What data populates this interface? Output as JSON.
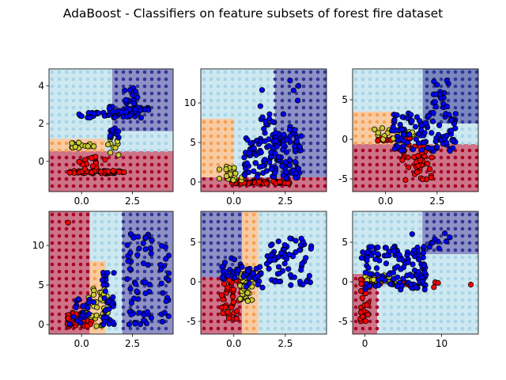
{
  "figure": {
    "title": "AdaBoost - Classifiers on feature subsets of forest fire dataset"
  },
  "colors": {
    "region": [
      "#a50026",
      "#f4a055",
      "#a6d6e6",
      "#313695"
    ],
    "point": [
      "#ff0000",
      "#cccc33",
      "#0000ff"
    ]
  },
  "chart_data": [
    {
      "type": "scatter",
      "xlim": [
        -1.6,
        4.5
      ],
      "ylim": [
        -1.6,
        4.9
      ],
      "xticks": [
        "0.0",
        "2.5"
      ],
      "xtick_values": [
        0,
        2.5
      ],
      "yticks": [
        "0",
        "2",
        "4"
      ],
      "ytick_values": [
        0,
        2,
        4
      ],
      "regions": [
        {
          "x0": -1.6,
          "x1": 4.5,
          "y0": -1.6,
          "y1": 0.55,
          "cls": 0
        },
        {
          "x0": -1.6,
          "x1": 1.2,
          "y0": 0.55,
          "y1": 1.2,
          "cls": 1
        },
        {
          "x0": 1.2,
          "x1": 4.5,
          "y0": 0.55,
          "y1": 1.6,
          "cls": 2
        },
        {
          "x0": -1.6,
          "x1": 1.5,
          "y0": 1.2,
          "y1": 4.9,
          "cls": 2
        },
        {
          "x0": 1.5,
          "x1": 4.5,
          "y0": 1.6,
          "y1": 4.9,
          "cls": 3
        }
      ],
      "clusters": [
        {
          "cls": 0,
          "x": [
            -0.6,
            2.1
          ],
          "y": [
            -0.65,
            -0.5
          ],
          "n": 60
        },
        {
          "cls": 0,
          "x": [
            -0.3,
            1.2
          ],
          "y": [
            -0.4,
            0.3
          ],
          "n": 15
        },
        {
          "cls": 1,
          "x": [
            -0.6,
            0.7
          ],
          "y": [
            0.7,
            1.0
          ],
          "n": 14
        },
        {
          "cls": 1,
          "x": [
            1.2,
            2.0
          ],
          "y": [
            0.3,
            1.5
          ],
          "n": 12
        },
        {
          "cls": 2,
          "x": [
            -0.2,
            3.0
          ],
          "y": [
            2.3,
            2.6
          ],
          "n": 40
        },
        {
          "cls": 2,
          "x": [
            1.3,
            3.3
          ],
          "y": [
            2.6,
            2.9
          ],
          "n": 30
        },
        {
          "cls": 2,
          "x": [
            2.1,
            2.8
          ],
          "y": [
            3.0,
            3.9
          ],
          "n": 14
        },
        {
          "cls": 2,
          "x": [
            1.4,
            1.9
          ],
          "y": [
            1.2,
            1.8
          ],
          "n": 10
        }
      ]
    },
    {
      "type": "scatter",
      "xlim": [
        -1.6,
        4.5
      ],
      "ylim": [
        -1.2,
        14.3
      ],
      "xticks": [
        "0.0",
        "2.5"
      ],
      "xtick_values": [
        0,
        2.5
      ],
      "yticks": [
        "0",
        "5",
        "10"
      ],
      "ytick_values": [
        0,
        5,
        10
      ],
      "regions": [
        {
          "x0": -1.6,
          "x1": 4.5,
          "y0": -1.2,
          "y1": 0.6,
          "cls": 0
        },
        {
          "x0": -1.6,
          "x1": 0.0,
          "y0": 0.6,
          "y1": 8.0,
          "cls": 1
        },
        {
          "x0": 0.0,
          "x1": 2.0,
          "y0": 0.6,
          "y1": 8.0,
          "cls": 2
        },
        {
          "x0": 2.0,
          "x1": 4.5,
          "y0": 0.6,
          "y1": 14.3,
          "cls": 3
        },
        {
          "x0": -1.6,
          "x1": 2.0,
          "y0": 8.0,
          "y1": 14.3,
          "cls": 2
        }
      ],
      "clusters": [
        {
          "cls": 0,
          "x": [
            -0.1,
            2.8
          ],
          "y": [
            -0.2,
            0.1
          ],
          "n": 50
        },
        {
          "cls": 1,
          "x": [
            -0.8,
            0.6
          ],
          "y": [
            0.2,
            2.0
          ],
          "n": 20
        },
        {
          "cls": 2,
          "x": [
            0.5,
            3.3
          ],
          "y": [
            0.5,
            6.0
          ],
          "n": 130
        },
        {
          "cls": 2,
          "x": [
            1.2,
            3.0
          ],
          "y": [
            5.0,
            9.0
          ],
          "n": 25
        },
        {
          "cls": 2,
          "x": [
            0.8,
            3.3
          ],
          "y": [
            9.0,
            13.0
          ],
          "n": 6
        }
      ]
    },
    {
      "type": "scatter",
      "xlim": [
        -1.6,
        4.5
      ],
      "ylim": [
        -6.6,
        8.9
      ],
      "xticks": [
        "0.0",
        "2.5"
      ],
      "xtick_values": [
        0,
        2.5
      ],
      "yticks": [
        "-5",
        "0",
        "5"
      ],
      "ytick_values": [
        -5,
        0,
        5
      ],
      "regions": [
        {
          "x0": -1.6,
          "x1": 4.5,
          "y0": -6.6,
          "y1": -0.6,
          "cls": 0
        },
        {
          "x0": -1.6,
          "x1": 0.5,
          "y0": -0.6,
          "y1": 3.5,
          "cls": 1
        },
        {
          "x0": 0.5,
          "x1": 4.5,
          "y0": -0.6,
          "y1": 3.5,
          "cls": 2
        },
        {
          "x0": -1.6,
          "x1": 4.5,
          "y0": 3.5,
          "y1": 8.9,
          "cls": 2
        },
        {
          "x0": 1.8,
          "x1": 4.5,
          "y0": 2.0,
          "y1": 8.9,
          "cls": 3
        }
      ],
      "clusters": [
        {
          "cls": 0,
          "x": [
            -0.4,
            1.2
          ],
          "y": [
            -0.2,
            0.2
          ],
          "n": 25
        },
        {
          "cls": 0,
          "x": [
            0.8,
            2.3
          ],
          "y": [
            -5.3,
            -0.5
          ],
          "n": 45
        },
        {
          "cls": 1,
          "x": [
            -0.6,
            1.5
          ],
          "y": [
            0.0,
            1.5
          ],
          "n": 20
        },
        {
          "cls": 2,
          "x": [
            0.3,
            3.5
          ],
          "y": [
            -1.5,
            3.5
          ],
          "n": 110
        },
        {
          "cls": 2,
          "x": [
            2.3,
            3.1
          ],
          "y": [
            4.0,
            7.5
          ],
          "n": 18
        }
      ]
    },
    {
      "type": "scatter",
      "xlim": [
        -1.6,
        4.5
      ],
      "ylim": [
        -1.2,
        14.3
      ],
      "xticks": [
        "0.0",
        "2.5"
      ],
      "xtick_values": [
        0,
        2.5
      ],
      "yticks": [
        "0",
        "5",
        "10"
      ],
      "ytick_values": [
        0,
        5,
        10
      ],
      "regions": [
        {
          "x0": -1.6,
          "x1": 0.4,
          "y0": -1.2,
          "y1": 14.3,
          "cls": 0
        },
        {
          "x0": 0.4,
          "x1": 1.2,
          "y0": -1.2,
          "y1": 8.0,
          "cls": 1
        },
        {
          "x0": 1.2,
          "x1": 2.0,
          "y0": -1.2,
          "y1": 14.3,
          "cls": 2
        },
        {
          "x0": 2.0,
          "x1": 4.5,
          "y0": -1.2,
          "y1": 14.3,
          "cls": 3
        },
        {
          "x0": 0.4,
          "x1": 1.2,
          "y0": 8.0,
          "y1": 14.3,
          "cls": 2
        }
      ],
      "clusters": [
        {
          "cls": 0,
          "x": [
            -0.8,
            0.5
          ],
          "y": [
            -0.3,
            1.5
          ],
          "n": 35
        },
        {
          "cls": 0,
          "x": [
            -0.8,
            -0.6
          ],
          "y": [
            12.5,
            13.5
          ],
          "n": 1
        },
        {
          "cls": 1,
          "x": [
            0.2,
            1.3
          ],
          "y": [
            -0.2,
            5.0
          ],
          "n": 40
        },
        {
          "cls": 2,
          "x": [
            -0.6,
            0.6
          ],
          "y": [
            0.0,
            3.5
          ],
          "n": 25
        },
        {
          "cls": 2,
          "x": [
            1.0,
            1.6
          ],
          "y": [
            0.0,
            7.5
          ],
          "n": 40
        },
        {
          "cls": 2,
          "x": [
            2.2,
            3.5
          ],
          "y": [
            0.0,
            11.5
          ],
          "n": 55
        },
        {
          "cls": 2,
          "x": [
            3.8,
            4.3
          ],
          "y": [
            0.0,
            10.5
          ],
          "n": 20
        }
      ]
    },
    {
      "type": "scatter",
      "xlim": [
        -1.6,
        4.5
      ],
      "ylim": [
        -6.6,
        8.9
      ],
      "xticks": [
        "0.0",
        "2.5"
      ],
      "xtick_values": [
        0,
        2.5
      ],
      "yticks": [
        "-5",
        "0",
        "5"
      ],
      "ytick_values": [
        -5,
        0,
        5
      ],
      "regions": [
        {
          "x0": -1.6,
          "x1": 0.4,
          "y0": -6.6,
          "y1": 0.5,
          "cls": 0
        },
        {
          "x0": 0.4,
          "x1": 1.2,
          "y0": -6.6,
          "y1": 8.9,
          "cls": 1
        },
        {
          "x0": 1.2,
          "x1": 4.5,
          "y0": -6.6,
          "y1": 8.9,
          "cls": 2
        },
        {
          "x0": -1.6,
          "x1": 0.4,
          "y0": 0.5,
          "y1": 8.9,
          "cls": 3
        }
      ],
      "clusters": [
        {
          "cls": 0,
          "x": [
            -0.6,
            0.4
          ],
          "y": [
            -4.8,
            0.5
          ],
          "n": 40
        },
        {
          "cls": 1,
          "x": [
            0.3,
            1.0
          ],
          "y": [
            -2.5,
            1.5
          ],
          "n": 40
        },
        {
          "cls": 2,
          "x": [
            -0.6,
            0.5
          ],
          "y": [
            0.0,
            3.0
          ],
          "n": 25
        },
        {
          "cls": 2,
          "x": [
            0.6,
            1.4
          ],
          "y": [
            -1.0,
            2.0
          ],
          "n": 25
        },
        {
          "cls": 2,
          "x": [
            1.6,
            3.8
          ],
          "y": [
            -0.5,
            5.5
          ],
          "n": 70
        }
      ]
    },
    {
      "type": "scatter",
      "xlim": [
        -1.6,
        14.8
      ],
      "ylim": [
        -6.6,
        8.9
      ],
      "xticks": [
        "0",
        "10"
      ],
      "xtick_values": [
        0,
        10
      ],
      "yticks": [
        "-5",
        "0",
        "5"
      ],
      "ytick_values": [
        -5,
        0,
        5
      ],
      "regions": [
        {
          "x0": -1.6,
          "x1": 1.6,
          "y0": -6.6,
          "y1": 1.0,
          "cls": 0
        },
        {
          "x0": -1.6,
          "x1": 1.6,
          "y0": 1.0,
          "y1": 8.9,
          "cls": 2
        },
        {
          "x0": 1.6,
          "x1": 14.8,
          "y0": -6.6,
          "y1": 3.5,
          "cls": 2
        },
        {
          "x0": 1.6,
          "x1": 7.5,
          "y0": 3.5,
          "y1": 8.9,
          "cls": 2
        },
        {
          "x0": 7.5,
          "x1": 14.8,
          "y0": 3.5,
          "y1": 8.9,
          "cls": 3
        }
      ],
      "clusters": [
        {
          "cls": 0,
          "x": [
            -0.6,
            0.6
          ],
          "y": [
            -5.0,
            0.5
          ],
          "n": 30
        },
        {
          "cls": 0,
          "x": [
            1.0,
            10.0
          ],
          "y": [
            -0.8,
            0.0
          ],
          "n": 12
        },
        {
          "cls": 1,
          "x": [
            0.0,
            4.0
          ],
          "y": [
            -0.5,
            1.0
          ],
          "n": 25
        },
        {
          "cls": 2,
          "x": [
            -0.5,
            8.0
          ],
          "y": [
            -1.0,
            4.5
          ],
          "n": 130
        },
        {
          "cls": 2,
          "x": [
            6.0,
            11.5
          ],
          "y": [
            4.0,
            6.5
          ],
          "n": 10
        },
        {
          "cls": 0,
          "x": [
            13.5,
            14.0
          ],
          "y": [
            -0.6,
            -0.2
          ],
          "n": 1
        }
      ]
    }
  ]
}
